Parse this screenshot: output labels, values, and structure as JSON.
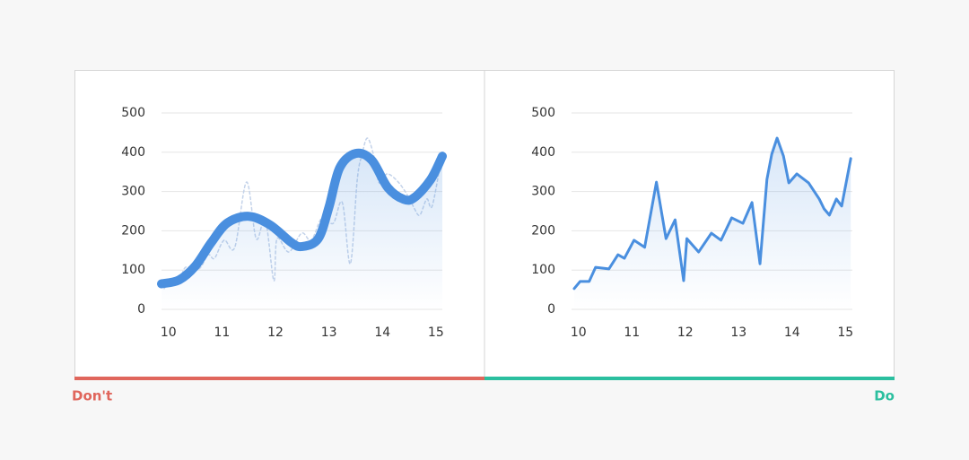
{
  "chart_data": [
    {
      "type": "line",
      "smooth": true,
      "color": "#4a8fdf",
      "xlim": [
        9.87,
        15.12
      ],
      "xticks": [
        10,
        11,
        12,
        13,
        14,
        15
      ],
      "ylim": [
        0,
        500
      ],
      "yticks": [
        0,
        100,
        200,
        300,
        400,
        500
      ],
      "grid": true,
      "series": [
        {
          "color": "#c4d3ea",
          "dashed": true,
          "x": [
            9.92,
            10.03,
            10.2,
            10.32,
            10.57,
            10.74,
            10.86,
            11.04,
            11.24,
            11.46,
            11.64,
            11.81,
            11.97,
            12.03,
            12.25,
            12.49,
            12.67,
            12.87,
            13.08,
            13.25,
            13.4,
            13.53,
            13.62,
            13.72,
            13.84,
            13.94,
            14.09,
            14.31,
            14.51,
            14.6,
            14.7,
            14.83,
            14.93,
            15.1
          ],
          "values": [
            53,
            71,
            71,
            107,
            103,
            139,
            130,
            176,
            158,
            324,
            180,
            228,
            73,
            180,
            146,
            194,
            176,
            233,
            219,
            272,
            116,
            331,
            395,
            436,
            390,
            322,
            345,
            322,
            281,
            256,
            240,
            281,
            263,
            384
          ]
        },
        {
          "color": "#4a8fdf",
          "x": [
            9.87,
            10.2,
            10.5,
            10.8,
            11.1,
            11.5,
            11.9,
            12.3,
            12.5,
            12.8,
            13.0,
            13.2,
            13.5,
            13.8,
            14.1,
            14.4,
            14.6,
            14.9,
            15.12
          ],
          "values": [
            65,
            75,
            110,
            170,
            220,
            237,
            215,
            170,
            160,
            180,
            260,
            360,
            397,
            380,
            310,
            280,
            285,
            330,
            390
          ]
        }
      ]
    },
    {
      "type": "line",
      "smooth": false,
      "color": "#4a8fdf",
      "xlim": [
        9.87,
        15.13
      ],
      "xticks": [
        10,
        11,
        12,
        13,
        14,
        15
      ],
      "ylim": [
        0,
        500
      ],
      "yticks": [
        0,
        100,
        200,
        300,
        400,
        500
      ],
      "grid": true,
      "series": [
        {
          "color": "#4a8fdf",
          "x": [
            9.92,
            10.03,
            10.2,
            10.32,
            10.57,
            10.74,
            10.86,
            11.04,
            11.24,
            11.46,
            11.64,
            11.81,
            11.97,
            12.03,
            12.25,
            12.49,
            12.67,
            12.87,
            13.08,
            13.25,
            13.4,
            13.53,
            13.62,
            13.72,
            13.84,
            13.94,
            14.09,
            14.31,
            14.51,
            14.6,
            14.7,
            14.83,
            14.93,
            15.1
          ],
          "values": [
            53,
            71,
            71,
            107,
            103,
            139,
            130,
            176,
            158,
            324,
            180,
            228,
            73,
            180,
            146,
            194,
            176,
            233,
            219,
            272,
            116,
            331,
            395,
            436,
            390,
            322,
            345,
            322,
            281,
            256,
            240,
            281,
            263,
            384
          ]
        }
      ]
    }
  ],
  "labels": {
    "dont": "Don't",
    "do": "Do",
    "dont_color": "#e0665c",
    "do_color": "#2bbf9f"
  }
}
